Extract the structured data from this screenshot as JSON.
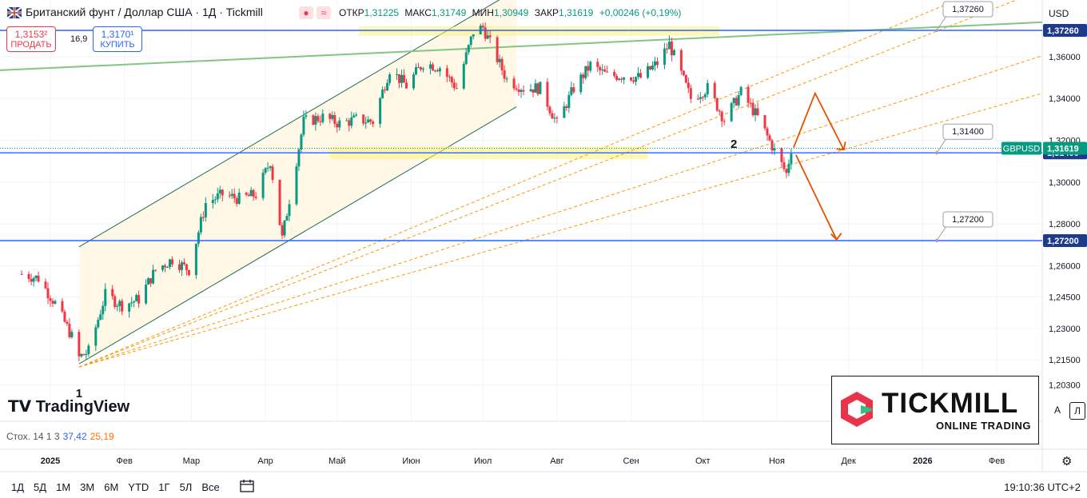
{
  "header": {
    "title": "Британский фунт / Доллар США · 1Д · Tickmill",
    "ohlc": [
      {
        "label": "ОТКР",
        "value": "1,31225"
      },
      {
        "label": "МАКС",
        "value": "1,31749"
      },
      {
        "label": "МИН",
        "value": "1,30949"
      },
      {
        "label": "ЗАКР",
        "value": "1,31619"
      }
    ],
    "change": "+0,00246 (+0,19%)"
  },
  "trade": {
    "sell_price": "1,3153²",
    "sell_label": "ПРОДАТЬ",
    "spread": "16,9",
    "buy_price": "1,3170¹",
    "buy_label": "КУПИТЬ"
  },
  "currency": "USD",
  "symbol_tag": "GBPUSD",
  "indicator": {
    "name": "Стох. 14 1 3",
    "k": "37,42",
    "d": "25,19"
  },
  "timeframes": [
    "1Д",
    "5Д",
    "1М",
    "3М",
    "6М",
    "YTD",
    "1Г",
    "5Л",
    "Все"
  ],
  "clock": "19:10:36 UTC+2",
  "scale_buttons": [
    "A",
    "Л"
  ],
  "branding": {
    "tradingview": "TradingView",
    "tickmill": "TICKMILL",
    "tickmill_sub": "ONLINE TRADING"
  },
  "icons": [
    "flag-icon",
    "calendar-range-icon",
    "gear-icon",
    "tradingview-logo-icon",
    "tickmill-logo-icon"
  ],
  "colors": {
    "up": "#089981",
    "down": "#f23645",
    "hline": "#2962ff",
    "channel": "#1e6b4e",
    "trend": "#81c784",
    "fib": "#ff9800",
    "arrow": "#e65100",
    "zone": "#fff176"
  },
  "chart_data": {
    "type": "candlestick",
    "symbol": "GBPUSD",
    "ylim": [
      1.195,
      1.385
    ],
    "y_ticks": [
      "1,37260",
      "1,36000",
      "1,34000",
      "1,32000",
      "1,30000",
      "1,28000",
      "1,27200",
      "1,26000",
      "1,24500",
      "1,23000",
      "1,21500",
      "1,20300"
    ],
    "x_ticks": [
      "2025",
      "Фев",
      "Мар",
      "Апр",
      "Май",
      "Июн",
      "Июл",
      "Авг",
      "Сен",
      "Окт",
      "Ноя",
      "Дек",
      "2026",
      "Фев"
    ],
    "series_close": [
      {
        "date": "2024-12-20",
        "close": 1.256
      },
      {
        "date": "2024-12-27",
        "close": 1.254
      },
      {
        "date": "2025-01-03",
        "close": 1.242
      },
      {
        "date": "2025-01-10",
        "close": 1.226
      },
      {
        "date": "2025-01-13",
        "close": 1.216
      },
      {
        "date": "2025-01-17",
        "close": 1.219
      },
      {
        "date": "2025-01-24",
        "close": 1.246
      },
      {
        "date": "2025-01-31",
        "close": 1.241
      },
      {
        "date": "2025-02-07",
        "close": 1.244
      },
      {
        "date": "2025-02-14",
        "close": 1.258
      },
      {
        "date": "2025-02-21",
        "close": 1.263
      },
      {
        "date": "2025-02-28",
        "close": 1.258
      },
      {
        "date": "2025-03-07",
        "close": 1.29
      },
      {
        "date": "2025-03-14",
        "close": 1.294
      },
      {
        "date": "2025-03-21",
        "close": 1.292
      },
      {
        "date": "2025-03-28",
        "close": 1.294
      },
      {
        "date": "2025-04-03",
        "close": 1.31
      },
      {
        "date": "2025-04-08",
        "close": 1.273
      },
      {
        "date": "2025-04-17",
        "close": 1.329
      },
      {
        "date": "2025-04-25",
        "close": 1.331
      },
      {
        "date": "2025-05-02",
        "close": 1.328
      },
      {
        "date": "2025-05-09",
        "close": 1.33
      },
      {
        "date": "2025-05-16",
        "close": 1.329
      },
      {
        "date": "2025-05-23",
        "close": 1.354
      },
      {
        "date": "2025-05-30",
        "close": 1.346
      },
      {
        "date": "2025-06-06",
        "close": 1.357
      },
      {
        "date": "2025-06-13",
        "close": 1.355
      },
      {
        "date": "2025-06-20",
        "close": 1.345
      },
      {
        "date": "2025-06-27",
        "close": 1.372
      },
      {
        "date": "2025-07-01",
        "close": 1.374
      },
      {
        "date": "2025-07-11",
        "close": 1.349
      },
      {
        "date": "2025-07-18",
        "close": 1.345
      },
      {
        "date": "2025-07-25",
        "close": 1.345
      },
      {
        "date": "2025-08-01",
        "close": 1.328
      },
      {
        "date": "2025-08-08",
        "close": 1.345
      },
      {
        "date": "2025-08-15",
        "close": 1.356
      },
      {
        "date": "2025-08-22",
        "close": 1.351
      },
      {
        "date": "2025-08-29",
        "close": 1.351
      },
      {
        "date": "2025-09-05",
        "close": 1.35
      },
      {
        "date": "2025-09-12",
        "close": 1.357
      },
      {
        "date": "2025-09-17",
        "close": 1.366
      },
      {
        "date": "2025-09-26",
        "close": 1.34
      },
      {
        "date": "2025-10-03",
        "close": 1.345
      },
      {
        "date": "2025-10-10",
        "close": 1.33
      },
      {
        "date": "2025-10-17",
        "close": 1.343
      },
      {
        "date": "2025-10-24",
        "close": 1.331
      },
      {
        "date": "2025-10-31",
        "close": 1.315
      },
      {
        "date": "2025-11-05",
        "close": 1.304
      },
      {
        "date": "2025-11-07",
        "close": 1.316
      }
    ],
    "horizontal_levels": [
      {
        "label": "1,37260",
        "value": 1.3726
      },
      {
        "label": "1,31400",
        "value": 1.314
      },
      {
        "label": "1,27200",
        "value": 1.272
      }
    ],
    "current_price": {
      "label": "1,31619",
      "value": 1.31619
    },
    "point_labels": [
      {
        "text": "1",
        "date": "2025-01-13"
      },
      {
        "text": "2",
        "date": "2025-10-14"
      }
    ],
    "grid": true
  }
}
